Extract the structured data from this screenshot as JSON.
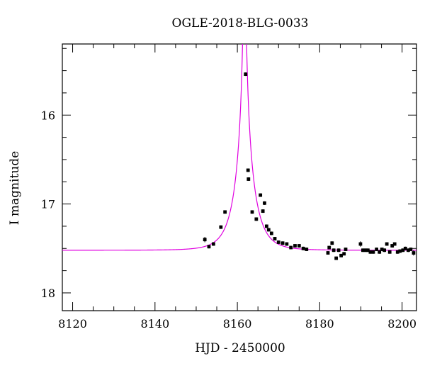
{
  "chart_data": {
    "type": "scatter",
    "title": "OGLE-2018-BLG-0033",
    "xlabel": "HJD - 2450000",
    "ylabel": "I magnitude",
    "xlim": [
      8117.5,
      8203.5
    ],
    "ylim": [
      18.2,
      15.2
    ],
    "y_inverted": true,
    "x_major_ticks": [
      8120,
      8140,
      8160,
      8180,
      8200
    ],
    "y_major_ticks": [
      16,
      17,
      18
    ],
    "x_minor_step": 5,
    "y_minor_step": 0.25,
    "grid": false,
    "model_color": "#e000e0",
    "point_color": "#000000",
    "model": {
      "name": "",
      "baseline_mag": 17.52,
      "t0": 8161.75,
      "u0": 0.02,
      "tE": 4.2
    },
    "series": [
      {
        "name": "",
        "x": [
          8152.1,
          8153.1,
          8154.2,
          8156.0,
          8157.0,
          8162.0,
          8162.6,
          8162.7,
          8163.6,
          8164.6,
          8165.6,
          8166.2,
          8166.6,
          8167.1,
          8167.6,
          8168.3,
          8169.1,
          8170.0,
          8171.0,
          8172.0,
          8173.0,
          8174.0,
          8175.0,
          8176.0,
          8176.8,
          8182.0,
          8182.3,
          8183.0,
          8183.4,
          8184.0,
          8184.6,
          8185.2,
          8185.9,
          8186.3,
          8189.9,
          8190.5,
          8191.1,
          8191.7,
          8192.3,
          8193.0,
          8193.8,
          8194.5,
          8195.1,
          8195.7,
          8196.3,
          8197.0,
          8197.6,
          8198.2,
          8198.9,
          8199.5,
          8200.2,
          8200.8,
          8201.5,
          8202.1,
          8202.8
        ],
        "y": [
          17.4,
          17.48,
          17.45,
          17.26,
          17.09,
          15.54,
          16.62,
          16.72,
          17.09,
          17.17,
          16.9,
          17.08,
          16.99,
          17.25,
          17.29,
          17.33,
          17.39,
          17.43,
          17.44,
          17.45,
          17.49,
          17.47,
          17.47,
          17.5,
          17.51,
          17.55,
          17.49,
          17.44,
          17.52,
          17.61,
          17.52,
          17.58,
          17.56,
          17.51,
          17.45,
          17.52,
          17.52,
          17.52,
          17.54,
          17.54,
          17.51,
          17.54,
          17.51,
          17.52,
          17.45,
          17.54,
          17.47,
          17.45,
          17.54,
          17.53,
          17.52,
          17.5,
          17.52,
          17.51,
          17.55
        ],
        "err": [
          0.03,
          0.02,
          0.02,
          0.02,
          0.02,
          0.02,
          0.02,
          0.02,
          0.02,
          0.02,
          0.02,
          0.02,
          0.02,
          0.02,
          0.02,
          0.02,
          0.02,
          0.02,
          0.02,
          0.02,
          0.02,
          0.02,
          0.02,
          0.02,
          0.02,
          0.02,
          0.02,
          0.02,
          0.02,
          0.02,
          0.02,
          0.02,
          0.02,
          0.02,
          0.03,
          0.02,
          0.02,
          0.02,
          0.02,
          0.02,
          0.02,
          0.02,
          0.02,
          0.02,
          0.02,
          0.02,
          0.02,
          0.02,
          0.02,
          0.02,
          0.02,
          0.02,
          0.02,
          0.02,
          0.03
        ]
      }
    ]
  }
}
